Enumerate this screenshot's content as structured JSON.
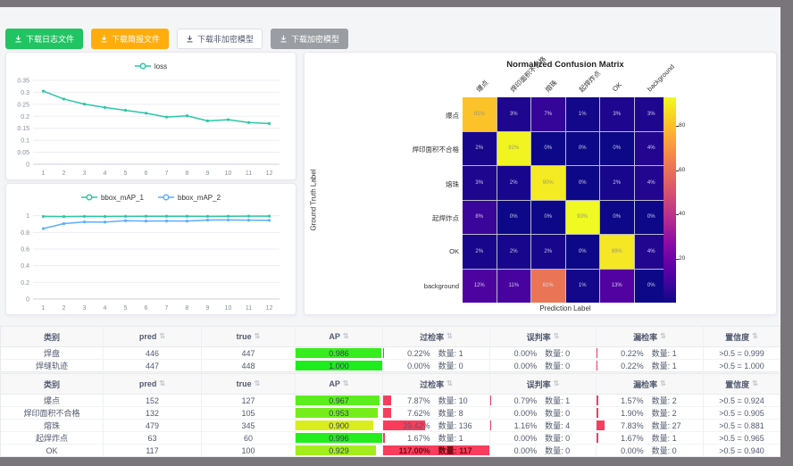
{
  "toolbar": {
    "buttons": [
      {
        "name": "download-log-file-button",
        "label": "下载日志文件",
        "style": "success"
      },
      {
        "name": "download-report-file-button",
        "label": "下载简报文件",
        "style": "warning"
      },
      {
        "name": "download-unencrypted-model-button",
        "label": "下载非加密模型",
        "style": "default"
      },
      {
        "name": "download-encrypted-model-button",
        "label": "下载加密模型",
        "style": "muted"
      }
    ]
  },
  "chart_data": [
    {
      "type": "line",
      "name": "loss-chart",
      "x": [
        "1",
        "2",
        "3",
        "4",
        "5",
        "6",
        "7",
        "8",
        "9",
        "10",
        "11",
        "12"
      ],
      "yticks": [
        "0",
        "0.05",
        "0.1",
        "0.15",
        "0.2",
        "0.25",
        "0.3",
        "0.35"
      ],
      "ymax": 0.35,
      "legend_position": "top",
      "grid": true,
      "series": [
        {
          "name": "loss",
          "color": "#2bc7a5",
          "values": [
            0.305,
            0.272,
            0.251,
            0.237,
            0.225,
            0.213,
            0.197,
            0.202,
            0.181,
            0.186,
            0.174,
            0.17
          ]
        }
      ]
    },
    {
      "type": "line",
      "name": "map-chart",
      "x": [
        "1",
        "2",
        "3",
        "4",
        "5",
        "6",
        "7",
        "8",
        "9",
        "10",
        "11",
        "12"
      ],
      "yticks": [
        "0",
        "0.2",
        "0.4",
        "0.6",
        "0.8",
        "1"
      ],
      "ymax": 1.05,
      "legend_position": "top",
      "grid": true,
      "series": [
        {
          "name": "bbox_mAP_1",
          "color": "#2bc7a5",
          "values": [
            0.992,
            0.99,
            0.992,
            0.991,
            0.993,
            0.994,
            0.994,
            0.994,
            0.993,
            0.994,
            0.995,
            0.995
          ]
        },
        {
          "name": "bbox_mAP_2",
          "color": "#5cadff",
          "values": [
            0.846,
            0.905,
            0.926,
            0.924,
            0.94,
            0.936,
            0.937,
            0.936,
            0.948,
            0.95,
            0.947,
            0.945
          ]
        }
      ]
    },
    {
      "type": "heatmap",
      "name": "confusion-matrix",
      "title": "Normalized Confusion Matrix",
      "xlabel": "Prediction Label",
      "ylabel": "Ground Truth Label",
      "labels": [
        "爆点",
        "焊印面积不合格",
        "熔珠",
        "起焊炸点",
        "OK",
        "background"
      ],
      "matrix": [
        [
          81,
          3,
          7,
          1,
          3,
          3
        ],
        [
          2,
          92,
          0,
          0,
          0,
          4
        ],
        [
          3,
          2,
          90,
          0,
          2,
          4
        ],
        [
          8,
          0,
          0,
          93,
          0,
          0
        ],
        [
          2,
          2,
          2,
          0,
          89,
          4
        ],
        [
          12,
          11,
          61,
          1,
          13,
          0
        ]
      ],
      "unit": "%",
      "vmax": 93,
      "colorbar_ticks": [
        20,
        40,
        60,
        80
      ],
      "colormap": "plasma"
    }
  ],
  "tables": [
    {
      "headers": [
        {
          "label": "类别",
          "sortable": false
        },
        {
          "label": "pred",
          "sortable": true
        },
        {
          "label": "true",
          "sortable": true
        },
        {
          "label": "AP",
          "sortable": true
        },
        {
          "label": "过检率",
          "sortable": true
        },
        {
          "label": "误判率",
          "sortable": true
        },
        {
          "label": "漏检率",
          "sortable": true
        },
        {
          "label": "置信度",
          "sortable": true
        }
      ],
      "rows": [
        {
          "cls": "焊盘",
          "pred": "446",
          "truth": "447",
          "ap": "0.986",
          "over": {
            "pct": "0.22%",
            "count": "数量: 1"
          },
          "mis": {
            "pct": "0.00%",
            "count": "数量: 0"
          },
          "miss": {
            "pct": "0.22%",
            "count": "数量: 1"
          },
          "conf": ">0.5 = 0.999"
        },
        {
          "cls": "焊缝轨迹",
          "pred": "447",
          "truth": "448",
          "ap": "1.000",
          "over": {
            "pct": "0.00%",
            "count": "数量: 0"
          },
          "mis": {
            "pct": "0.00%",
            "count": "数量: 0"
          },
          "miss": {
            "pct": "0.22%",
            "count": "数量: 1"
          },
          "conf": ">0.5 = 1.000"
        }
      ]
    },
    {
      "headers": [
        {
          "label": "类别",
          "sortable": false
        },
        {
          "label": "pred",
          "sortable": true
        },
        {
          "label": "true",
          "sortable": true
        },
        {
          "label": "AP",
          "sortable": true
        },
        {
          "label": "过检率",
          "sortable": true
        },
        {
          "label": "误判率",
          "sortable": true
        },
        {
          "label": "漏检率",
          "sortable": true
        },
        {
          "label": "置信度",
          "sortable": true
        }
      ],
      "rows": [
        {
          "cls": "爆点",
          "pred": "152",
          "truth": "127",
          "ap": "0.967",
          "over": {
            "pct": "7.87%",
            "count": "数量: 10"
          },
          "mis": {
            "pct": "0.79%",
            "count": "数量: 1"
          },
          "miss": {
            "pct": "1.57%",
            "count": "数量: 2"
          },
          "conf": ">0.5 = 0.924"
        },
        {
          "cls": "焊印面积不合格",
          "pred": "132",
          "truth": "105",
          "ap": "0.953",
          "over": {
            "pct": "7.62%",
            "count": "数量: 8"
          },
          "mis": {
            "pct": "0.00%",
            "count": "数量: 0"
          },
          "miss": {
            "pct": "1.90%",
            "count": "数量: 2"
          },
          "conf": ">0.5 = 0.905"
        },
        {
          "cls": "熔珠",
          "pred": "479",
          "truth": "345",
          "ap": "0.900",
          "over": {
            "pct": "39.42%",
            "count": "数量: 136"
          },
          "mis": {
            "pct": "1.16%",
            "count": "数量: 4"
          },
          "miss": {
            "pct": "7.83%",
            "count": "数量: 27"
          },
          "conf": ">0.5 = 0.881"
        },
        {
          "cls": "起焊炸点",
          "pred": "63",
          "truth": "60",
          "ap": "0.996",
          "over": {
            "pct": "1.67%",
            "count": "数量: 1"
          },
          "mis": {
            "pct": "0.00%",
            "count": "数量: 0"
          },
          "miss": {
            "pct": "1.67%",
            "count": "数量: 1"
          },
          "conf": ">0.5 = 0.965"
        },
        {
          "cls": "OK",
          "pred": "117",
          "truth": "100",
          "ap": "0.929",
          "over": {
            "pct": "117.00%",
            "count": "数量: 117"
          },
          "mis": {
            "pct": "0.00%",
            "count": "数量: 0"
          },
          "miss": {
            "pct": "0.00%",
            "count": "数量: 0"
          },
          "conf": ">0.5 = 0.940"
        }
      ]
    }
  ],
  "colors": {
    "frame": "#7a747b",
    "app_bg": "#f4f5f7",
    "rate_bar": "#fa2c4e",
    "loss_series": "#2bc7a5",
    "map2_series": "#5cadff"
  }
}
